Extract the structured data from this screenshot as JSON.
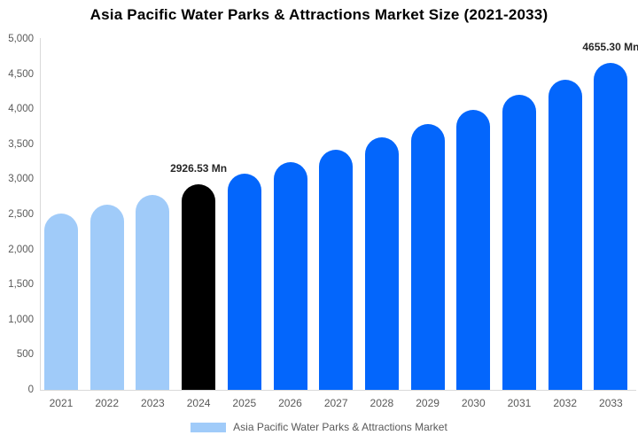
{
  "chart_data": {
    "type": "bar",
    "title": "Asia Pacific Water Parks & Attractions Market Size (2021-2033)",
    "categories": [
      "2021",
      "2022",
      "2023",
      "2024",
      "2025",
      "2026",
      "2027",
      "2028",
      "2029",
      "2030",
      "2031",
      "2032",
      "2033"
    ],
    "values": [
      2507,
      2640,
      2779,
      2926.53,
      3082,
      3245,
      3417,
      3598,
      3788,
      3988,
      4199,
      4421,
      4655.3
    ],
    "unit": "Mn",
    "ylim": [
      0,
      5000
    ],
    "ytick_step": 500,
    "ytick_labels": [
      "0",
      "500",
      "1,000",
      "1,500",
      "2,000",
      "2,500",
      "3,000",
      "3,500",
      "4,000",
      "4,500",
      "5,000"
    ],
    "data_labels": [
      {
        "category": "2024",
        "text": "2926.53 Mn"
      },
      {
        "category": "2033",
        "text": "4655.30 Mn"
      }
    ],
    "bar_roles": [
      "historical",
      "historical",
      "historical",
      "base_year",
      "forecast",
      "forecast",
      "forecast",
      "forecast",
      "forecast",
      "forecast",
      "forecast",
      "forecast",
      "forecast"
    ],
    "colors": {
      "historical": "#A0CBF9",
      "base_year": "#000000",
      "forecast": "#0366FC",
      "axis_line": "#D9D9D9",
      "tick_text": "#595959",
      "data_label_text": "#262626"
    },
    "grid": "off",
    "legend_position": "bottom",
    "legend": {
      "label": "Asia Pacific Water Parks & Attractions Market",
      "swatch_color": "#A0CBF9"
    }
  }
}
